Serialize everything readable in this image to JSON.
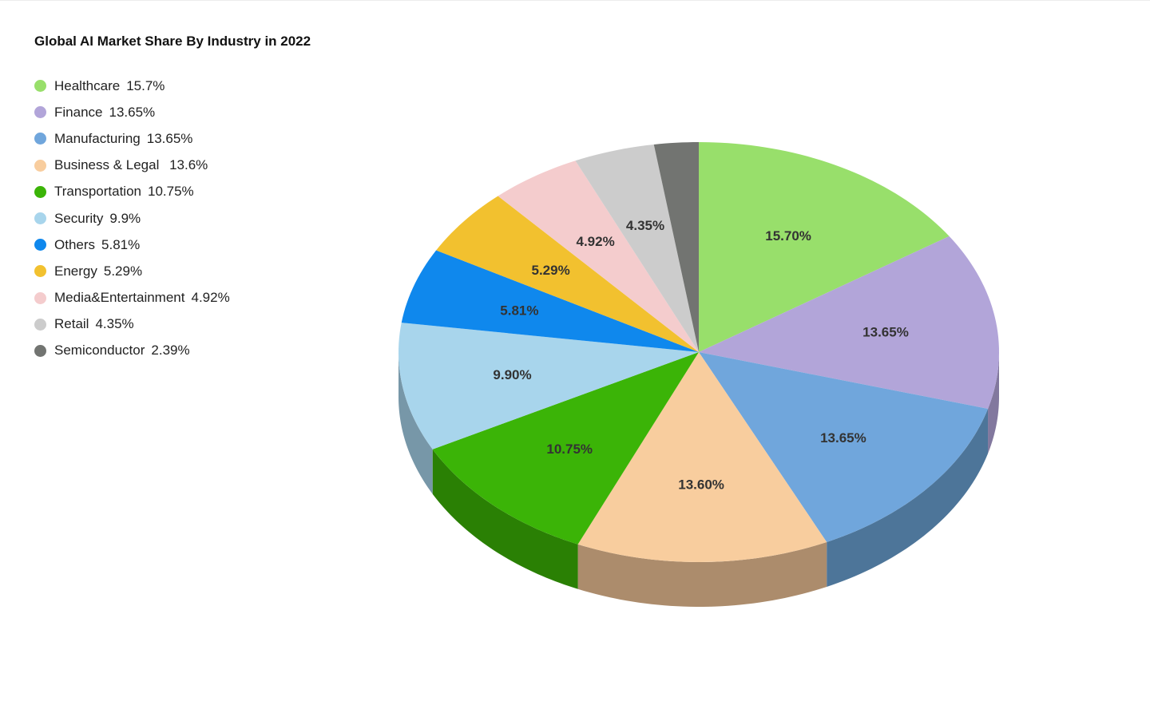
{
  "chart_data": {
    "type": "pie",
    "title": "Global AI Market Share By Industry in 2022",
    "legend_position": "left",
    "style": "3d-tilted",
    "slices": [
      {
        "name": "Healthcare",
        "legend_text": "15.7%",
        "label": "15.70%",
        "value": 15.7,
        "color": "#98df6b",
        "side_color": "#6ea24d"
      },
      {
        "name": "Finance",
        "legend_text": "13.65%",
        "label": "13.65%",
        "value": 13.65,
        "color": "#b2a5d9",
        "side_color": "#82789e"
      },
      {
        "name": "Manufacturing",
        "legend_text": "13.65%",
        "label": "13.65%",
        "value": 13.65,
        "color": "#70a6dc",
        "side_color": "#4d7599"
      },
      {
        "name": "Business & Legal ",
        "legend_text": "13.6%",
        "label": "13.60%",
        "value": 13.6,
        "color": "#f8cd9e",
        "side_color": "#ac8c6c"
      },
      {
        "name": "Transportation",
        "legend_text": "10.75%",
        "label": "10.75%",
        "value": 10.75,
        "color": "#3bb407",
        "side_color": "#2a8004"
      },
      {
        "name": "Security",
        "legend_text": "9.9%",
        "label": "9.90%",
        "value": 9.9,
        "color": "#a8d5ec",
        "side_color": "#7797a8"
      },
      {
        "name": "Others",
        "legend_text": "5.81%",
        "label": "5.81%",
        "value": 5.81,
        "color": "#0f88ed",
        "side_color": "#0a5fa6"
      },
      {
        "name": "Energy",
        "legend_text": "5.29%",
        "label": "5.29%",
        "value": 5.29,
        "color": "#f2c12f",
        "side_color": "#a98720"
      },
      {
        "name": "Media&Entertainment",
        "legend_text": "4.92%",
        "label": "4.92%",
        "value": 4.92,
        "color": "#f4cccd",
        "side_color": "#ab8f90"
      },
      {
        "name": "Retail",
        "legend_text": "4.35%",
        "label": "4.35%",
        "value": 4.35,
        "color": "#cccccc",
        "side_color": "#8f8f8f"
      },
      {
        "name": "Semiconductor",
        "legend_text": "2.39%",
        "label": "",
        "value": 2.39,
        "color": "#727471",
        "side_color": "#505150"
      }
    ]
  }
}
